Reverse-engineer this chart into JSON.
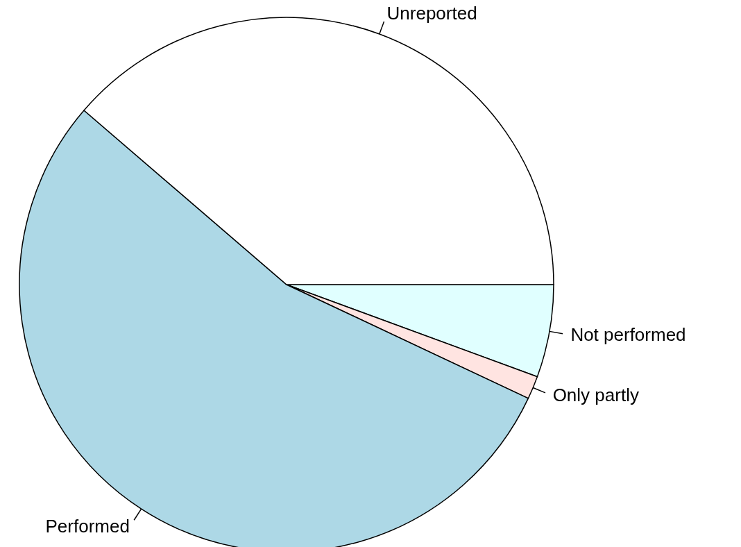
{
  "chart_data": {
    "type": "pie",
    "categories": [
      "Not performed",
      "Only partly",
      "Performed",
      "Unreported"
    ],
    "values": [
      5.6,
      1.4,
      54.3,
      38.7
    ],
    "colors": [
      "#e0ffff",
      "#ffe4e1",
      "#add8e6",
      "#ffffff"
    ]
  }
}
